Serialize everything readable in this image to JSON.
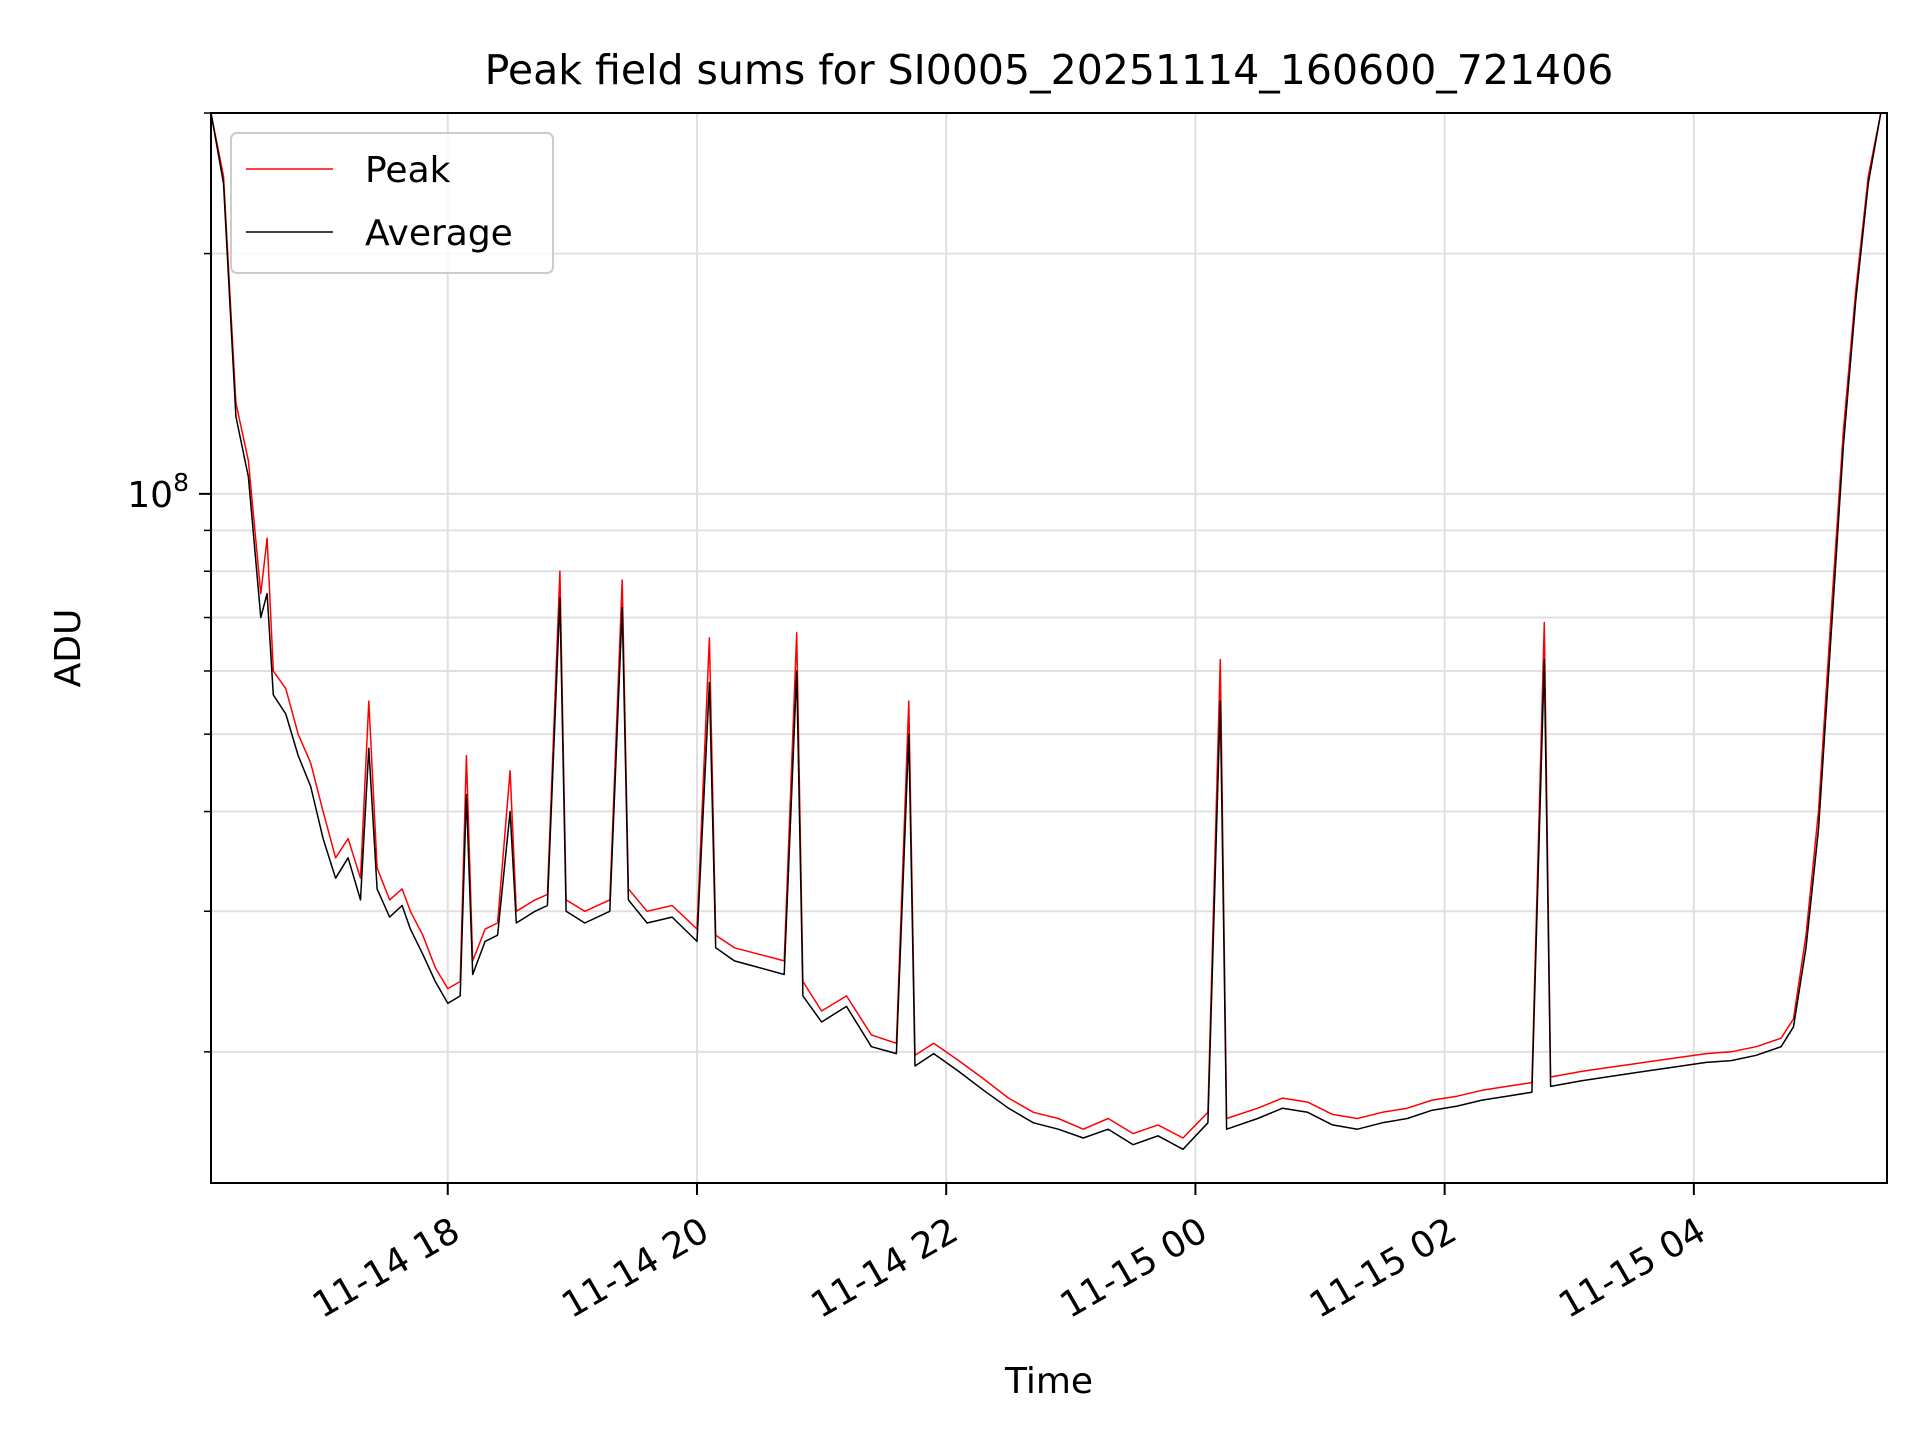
{
  "chart_data": {
    "type": "line",
    "title": "Peak field sums for SI0005_20251114_160600_721406",
    "xlabel": "Time",
    "ylabel": "ADU",
    "y_scale": "log",
    "x_range": [
      "2025-11-14 16:06",
      "2025-11-15 05:33"
    ],
    "ylim": [
      13700000,
      300000000
    ],
    "grid": true,
    "legend_position": "top-left",
    "x_ticks": [
      {
        "value": "2025-11-14 18:00",
        "label": "11-14 18"
      },
      {
        "value": "2025-11-14 20:00",
        "label": "11-14 20"
      },
      {
        "value": "2025-11-14 22:00",
        "label": "11-14 22"
      },
      {
        "value": "2025-11-15 00:00",
        "label": "11-15 00"
      },
      {
        "value": "2025-11-15 02:00",
        "label": "11-15 02"
      },
      {
        "value": "2025-11-15 04:00",
        "label": "11-15 04"
      }
    ],
    "y_ticks": [
      {
        "value": 100000000,
        "label_base": "10",
        "label_exp": "8"
      }
    ],
    "series": [
      {
        "name": "Peak",
        "color": "#ff0000",
        "points": [
          [
            "2025-11-14 16:06",
            300000000
          ],
          [
            "2025-11-14 16:12",
            250000000
          ],
          [
            "2025-11-14 16:18",
            130000000
          ],
          [
            "2025-11-14 16:24",
            110000000
          ],
          [
            "2025-11-14 16:30",
            75000000
          ],
          [
            "2025-11-14 16:33",
            88000000
          ],
          [
            "2025-11-14 16:36",
            60000000
          ],
          [
            "2025-11-14 16:42",
            57000000
          ],
          [
            "2025-11-14 16:48",
            50000000
          ],
          [
            "2025-11-14 16:54",
            46000000
          ],
          [
            "2025-11-14 17:00",
            40000000
          ],
          [
            "2025-11-14 17:06",
            35000000
          ],
          [
            "2025-11-14 17:12",
            37000000
          ],
          [
            "2025-11-14 17:18",
            33000000
          ],
          [
            "2025-11-14 17:22",
            55000000
          ],
          [
            "2025-11-14 17:26",
            34000000
          ],
          [
            "2025-11-14 17:32",
            31000000
          ],
          [
            "2025-11-14 17:38",
            32000000
          ],
          [
            "2025-11-14 17:42",
            30000000
          ],
          [
            "2025-11-14 17:48",
            28000000
          ],
          [
            "2025-11-14 17:54",
            25500000
          ],
          [
            "2025-11-14 18:00",
            24000000
          ],
          [
            "2025-11-14 18:06",
            24500000
          ],
          [
            "2025-11-14 18:09",
            47000000
          ],
          [
            "2025-11-14 18:12",
            26000000
          ],
          [
            "2025-11-14 18:18",
            28500000
          ],
          [
            "2025-11-14 18:24",
            29000000
          ],
          [
            "2025-11-14 18:30",
            45000000
          ],
          [
            "2025-11-14 18:33",
            30000000
          ],
          [
            "2025-11-14 18:42",
            31000000
          ],
          [
            "2025-11-14 18:48",
            31500000
          ],
          [
            "2025-11-14 18:54",
            80000000
          ],
          [
            "2025-11-14 18:57",
            31000000
          ],
          [
            "2025-11-14 19:06",
            30000000
          ],
          [
            "2025-11-14 19:18",
            31000000
          ],
          [
            "2025-11-14 19:24",
            78000000
          ],
          [
            "2025-11-14 19:27",
            32000000
          ],
          [
            "2025-11-14 19:36",
            30000000
          ],
          [
            "2025-11-14 19:48",
            30500000
          ],
          [
            "2025-11-14 20:00",
            28500000
          ],
          [
            "2025-11-14 20:06",
            66000000
          ],
          [
            "2025-11-14 20:09",
            28000000
          ],
          [
            "2025-11-14 20:18",
            27000000
          ],
          [
            "2025-11-14 20:30",
            26500000
          ],
          [
            "2025-11-14 20:42",
            26000000
          ],
          [
            "2025-11-14 20:48",
            67000000
          ],
          [
            "2025-11-14 20:51",
            24500000
          ],
          [
            "2025-11-14 21:00",
            22500000
          ],
          [
            "2025-11-14 21:12",
            23500000
          ],
          [
            "2025-11-14 21:24",
            21000000
          ],
          [
            "2025-11-14 21:36",
            20500000
          ],
          [
            "2025-11-14 21:42",
            55000000
          ],
          [
            "2025-11-14 21:45",
            19800000
          ],
          [
            "2025-11-14 21:54",
            20500000
          ],
          [
            "2025-11-14 22:06",
            19500000
          ],
          [
            "2025-11-14 22:18",
            18500000
          ],
          [
            "2025-11-14 22:30",
            17500000
          ],
          [
            "2025-11-14 22:42",
            16800000
          ],
          [
            "2025-11-14 22:54",
            16500000
          ],
          [
            "2025-11-14 23:06",
            16000000
          ],
          [
            "2025-11-14 23:18",
            16500000
          ],
          [
            "2025-11-14 23:30",
            15800000
          ],
          [
            "2025-11-14 23:42",
            16200000
          ],
          [
            "2025-11-14 23:54",
            15600000
          ],
          [
            "2025-11-15 00:06",
            16800000
          ],
          [
            "2025-11-15 00:12",
            62000000
          ],
          [
            "2025-11-15 00:15",
            16500000
          ],
          [
            "2025-11-15 00:30",
            17000000
          ],
          [
            "2025-11-15 00:42",
            17500000
          ],
          [
            "2025-11-15 00:54",
            17300000
          ],
          [
            "2025-11-15 01:06",
            16700000
          ],
          [
            "2025-11-15 01:18",
            16500000
          ],
          [
            "2025-11-15 01:30",
            16800000
          ],
          [
            "2025-11-15 01:42",
            17000000
          ],
          [
            "2025-11-15 01:54",
            17400000
          ],
          [
            "2025-11-15 02:06",
            17600000
          ],
          [
            "2025-11-15 02:18",
            17900000
          ],
          [
            "2025-11-15 02:30",
            18100000
          ],
          [
            "2025-11-15 02:42",
            18300000
          ],
          [
            "2025-11-15 02:48",
            69000000
          ],
          [
            "2025-11-15 02:51",
            18600000
          ],
          [
            "2025-11-15 03:06",
            18900000
          ],
          [
            "2025-11-15 03:18",
            19100000
          ],
          [
            "2025-11-15 03:30",
            19300000
          ],
          [
            "2025-11-15 03:42",
            19500000
          ],
          [
            "2025-11-15 03:54",
            19700000
          ],
          [
            "2025-11-15 04:06",
            19900000
          ],
          [
            "2025-11-15 04:18",
            20000000
          ],
          [
            "2025-11-15 04:30",
            20300000
          ],
          [
            "2025-11-15 04:42",
            20800000
          ],
          [
            "2025-11-15 04:48",
            22000000
          ],
          [
            "2025-11-15 04:54",
            28000000
          ],
          [
            "2025-11-15 05:00",
            40000000
          ],
          [
            "2025-11-15 05:06",
            70000000
          ],
          [
            "2025-11-15 05:12",
            120000000
          ],
          [
            "2025-11-15 05:18",
            180000000
          ],
          [
            "2025-11-15 05:24",
            250000000
          ],
          [
            "2025-11-15 05:30",
            300000000
          ]
        ]
      },
      {
        "name": "Average",
        "color": "#000000",
        "points": [
          [
            "2025-11-14 16:06",
            300000000
          ],
          [
            "2025-11-14 16:12",
            245000000
          ],
          [
            "2025-11-14 16:18",
            125000000
          ],
          [
            "2025-11-14 16:24",
            105000000
          ],
          [
            "2025-11-14 16:30",
            70000000
          ],
          [
            "2025-11-14 16:33",
            75000000
          ],
          [
            "2025-11-14 16:36",
            56000000
          ],
          [
            "2025-11-14 16:42",
            53000000
          ],
          [
            "2025-11-14 16:48",
            47000000
          ],
          [
            "2025-11-14 16:54",
            43000000
          ],
          [
            "2025-11-14 17:00",
            37000000
          ],
          [
            "2025-11-14 17:06",
            33000000
          ],
          [
            "2025-11-14 17:12",
            35000000
          ],
          [
            "2025-11-14 17:18",
            31000000
          ],
          [
            "2025-11-14 17:22",
            48000000
          ],
          [
            "2025-11-14 17:26",
            32000000
          ],
          [
            "2025-11-14 17:32",
            29500000
          ],
          [
            "2025-11-14 17:38",
            30500000
          ],
          [
            "2025-11-14 17:42",
            28500000
          ],
          [
            "2025-11-14 17:48",
            26500000
          ],
          [
            "2025-11-14 17:54",
            24500000
          ],
          [
            "2025-11-14 18:00",
            23000000
          ],
          [
            "2025-11-14 18:06",
            23500000
          ],
          [
            "2025-11-14 18:09",
            42000000
          ],
          [
            "2025-11-14 18:12",
            25000000
          ],
          [
            "2025-11-14 18:18",
            27500000
          ],
          [
            "2025-11-14 18:24",
            28000000
          ],
          [
            "2025-11-14 18:30",
            40000000
          ],
          [
            "2025-11-14 18:33",
            29000000
          ],
          [
            "2025-11-14 18:42",
            30000000
          ],
          [
            "2025-11-14 18:48",
            30500000
          ],
          [
            "2025-11-14 18:54",
            74000000
          ],
          [
            "2025-11-14 18:57",
            30000000
          ],
          [
            "2025-11-14 19:06",
            29000000
          ],
          [
            "2025-11-14 19:18",
            30000000
          ],
          [
            "2025-11-14 19:24",
            72000000
          ],
          [
            "2025-11-14 19:27",
            31000000
          ],
          [
            "2025-11-14 19:36",
            29000000
          ],
          [
            "2025-11-14 19:48",
            29500000
          ],
          [
            "2025-11-14 20:00",
            27500000
          ],
          [
            "2025-11-14 20:06",
            58000000
          ],
          [
            "2025-11-14 20:09",
            27000000
          ],
          [
            "2025-11-14 20:18",
            26000000
          ],
          [
            "2025-11-14 20:30",
            25500000
          ],
          [
            "2025-11-14 20:42",
            25000000
          ],
          [
            "2025-11-14 20:48",
            60000000
          ],
          [
            "2025-11-14 20:51",
            23500000
          ],
          [
            "2025-11-14 21:00",
            21800000
          ],
          [
            "2025-11-14 21:12",
            22800000
          ],
          [
            "2025-11-14 21:24",
            20300000
          ],
          [
            "2025-11-14 21:36",
            19900000
          ],
          [
            "2025-11-14 21:42",
            50000000
          ],
          [
            "2025-11-14 21:45",
            19200000
          ],
          [
            "2025-11-14 21:54",
            19900000
          ],
          [
            "2025-11-14 22:06",
            18900000
          ],
          [
            "2025-11-14 22:18",
            17900000
          ],
          [
            "2025-11-14 22:30",
            17000000
          ],
          [
            "2025-11-14 22:42",
            16300000
          ],
          [
            "2025-11-14 22:54",
            16000000
          ],
          [
            "2025-11-14 23:06",
            15600000
          ],
          [
            "2025-11-14 23:18",
            16000000
          ],
          [
            "2025-11-14 23:30",
            15300000
          ],
          [
            "2025-11-14 23:42",
            15700000
          ],
          [
            "2025-11-14 23:54",
            15100000
          ],
          [
            "2025-11-15 00:06",
            16300000
          ],
          [
            "2025-11-15 00:12",
            55000000
          ],
          [
            "2025-11-15 00:15",
            16000000
          ],
          [
            "2025-11-15 00:30",
            16500000
          ],
          [
            "2025-11-15 00:42",
            17000000
          ],
          [
            "2025-11-15 00:54",
            16800000
          ],
          [
            "2025-11-15 01:06",
            16200000
          ],
          [
            "2025-11-15 01:18",
            16000000
          ],
          [
            "2025-11-15 01:30",
            16300000
          ],
          [
            "2025-11-15 01:42",
            16500000
          ],
          [
            "2025-11-15 01:54",
            16900000
          ],
          [
            "2025-11-15 02:06",
            17100000
          ],
          [
            "2025-11-15 02:18",
            17400000
          ],
          [
            "2025-11-15 02:30",
            17600000
          ],
          [
            "2025-11-15 02:42",
            17800000
          ],
          [
            "2025-11-15 02:48",
            62000000
          ],
          [
            "2025-11-15 02:51",
            18100000
          ],
          [
            "2025-11-15 03:06",
            18400000
          ],
          [
            "2025-11-15 03:18",
            18600000
          ],
          [
            "2025-11-15 03:30",
            18800000
          ],
          [
            "2025-11-15 03:42",
            19000000
          ],
          [
            "2025-11-15 03:54",
            19200000
          ],
          [
            "2025-11-15 04:06",
            19400000
          ],
          [
            "2025-11-15 04:18",
            19500000
          ],
          [
            "2025-11-15 04:30",
            19800000
          ],
          [
            "2025-11-15 04:42",
            20300000
          ],
          [
            "2025-11-15 04:48",
            21500000
          ],
          [
            "2025-11-15 04:54",
            27000000
          ],
          [
            "2025-11-15 05:00",
            38000000
          ],
          [
            "2025-11-15 05:06",
            66000000
          ],
          [
            "2025-11-15 05:12",
            115000000
          ],
          [
            "2025-11-15 05:18",
            175000000
          ],
          [
            "2025-11-15 05:24",
            245000000
          ],
          [
            "2025-11-15 05:30",
            300000000
          ]
        ]
      }
    ]
  }
}
